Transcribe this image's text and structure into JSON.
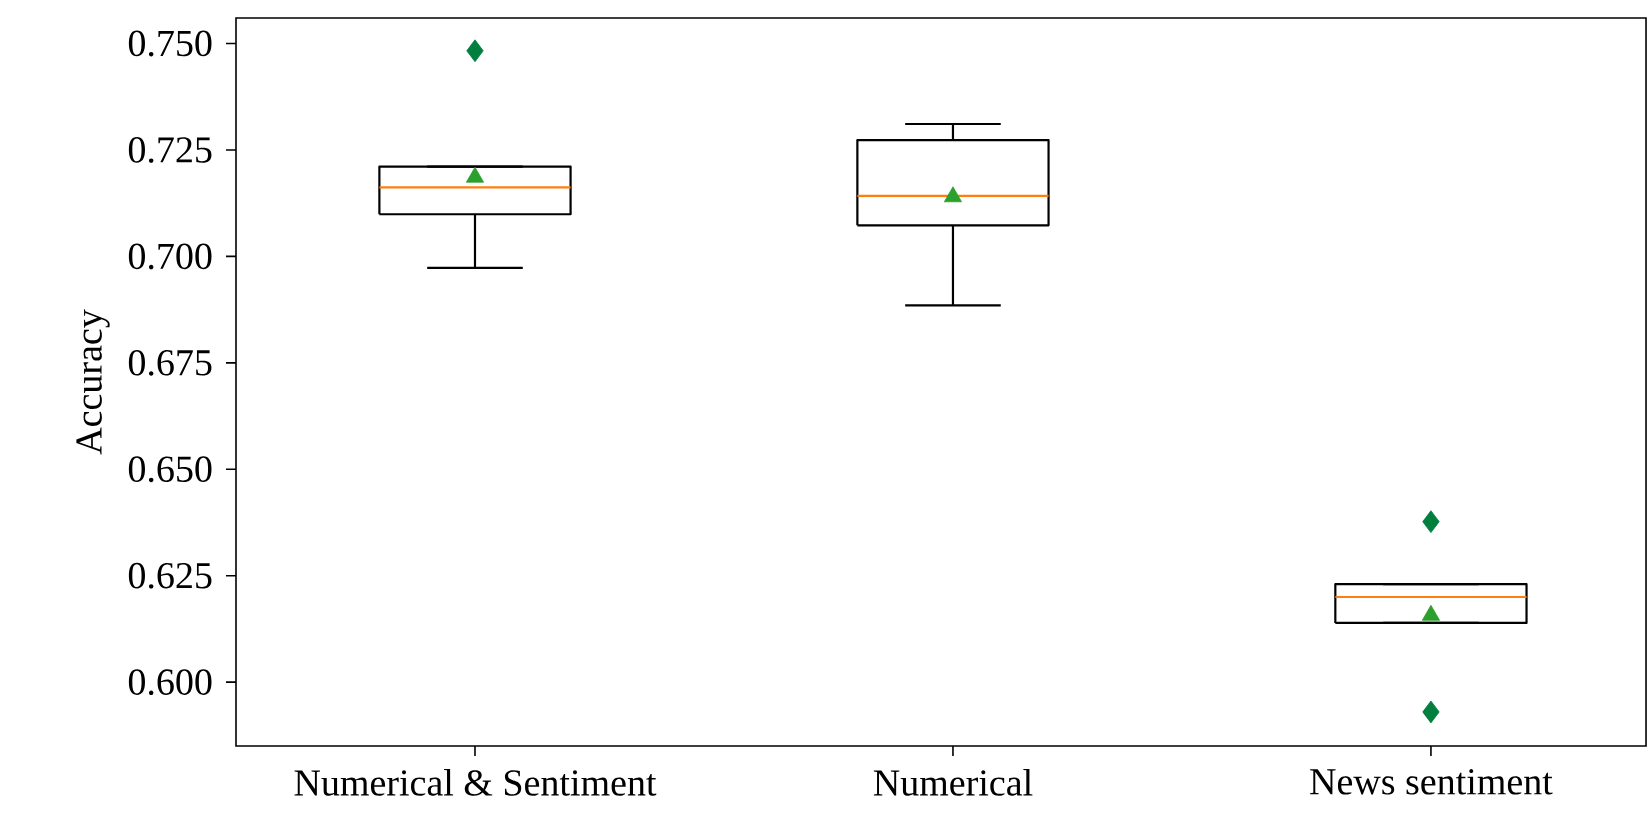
{
  "chart_data": {
    "type": "box",
    "ylabel": "Accuracy",
    "categories": [
      "Numerical & Sentiment",
      "Numerical",
      "News sentiment"
    ],
    "boxes": [
      {
        "low": 0.6973,
        "q1": 0.7099,
        "median": 0.7162,
        "q3": 0.7211,
        "high": 0.7211,
        "mean": 0.7186,
        "outliers": [
          0.7483
        ]
      },
      {
        "low": 0.6885,
        "q1": 0.7073,
        "median": 0.7142,
        "q3": 0.7273,
        "high": 0.7311,
        "mean": 0.714
      },
      {
        "low": 0.6139,
        "q1": 0.6139,
        "median": 0.62,
        "q3": 0.623,
        "high": 0.623,
        "mean": 0.6157,
        "outliers": [
          0.6377,
          0.593
        ]
      }
    ],
    "ylim": [
      0.585,
      0.756
    ],
    "yticks": [
      {
        "value": 0.6,
        "label": "0.600"
      },
      {
        "value": 0.625,
        "label": "0.625"
      },
      {
        "value": 0.65,
        "label": "0.650"
      },
      {
        "value": 0.675,
        "label": "0.675"
      },
      {
        "value": 0.7,
        "label": "0.700"
      },
      {
        "value": 0.725,
        "label": "0.725"
      },
      {
        "value": 0.75,
        "label": "0.750"
      }
    ]
  }
}
